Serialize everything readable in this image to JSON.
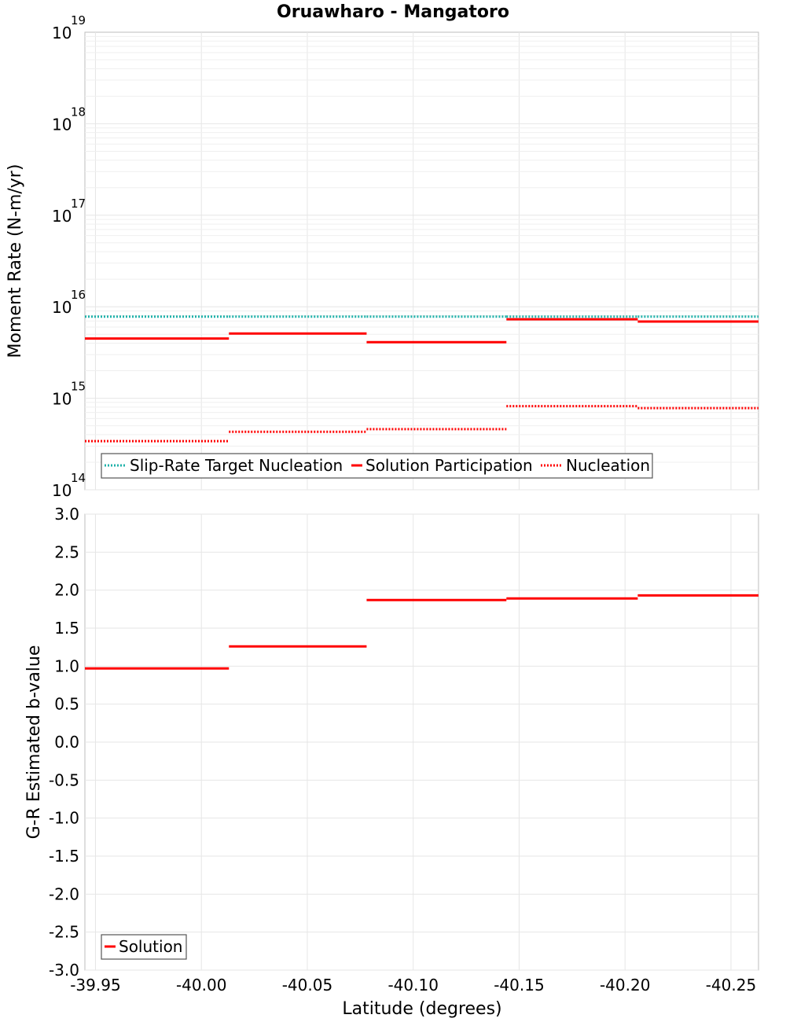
{
  "chart_data": [
    {
      "type": "line",
      "title": "Oruawharo - Mangatoro",
      "ylabel": "Moment Rate (N-m/yr)",
      "xlabel": "Latitude (degrees)",
      "yscale": "log",
      "ylim_exp": [
        14,
        19
      ],
      "y_tick_exponents": [
        "14",
        "15",
        "16",
        "17",
        "18",
        "19"
      ],
      "y_tick_base": "10",
      "xlim": [
        -39.945,
        -40.263
      ],
      "x_ticks": [
        "-39.95",
        "-40.00",
        "-40.05",
        "-40.10",
        "-40.15",
        "-40.20",
        "-40.25"
      ],
      "x_tick_values": [
        -39.95,
        -40.0,
        -40.05,
        -40.1,
        -40.15,
        -40.2,
        -40.25
      ],
      "series": [
        {
          "name": "Slip-Rate Target Nucleation",
          "color": "#20b2aa",
          "style": "dotted",
          "segments": [
            {
              "x0": -39.945,
              "x1": -40.013,
              "y": 7800000000000000.0
            },
            {
              "x0": -40.013,
              "x1": -40.078,
              "y": 7800000000000000.0
            },
            {
              "x0": -40.078,
              "x1": -40.144,
              "y": 7800000000000000.0
            },
            {
              "x0": -40.144,
              "x1": -40.206,
              "y": 7800000000000000.0
            },
            {
              "x0": -40.206,
              "x1": -40.263,
              "y": 7800000000000000.0
            }
          ]
        },
        {
          "name": "Solution Participation",
          "color": "#ff0000",
          "style": "solid",
          "segments": [
            {
              "x0": -39.945,
              "x1": -40.013,
              "y": 4500000000000000.0
            },
            {
              "x0": -40.013,
              "x1": -40.078,
              "y": 5100000000000000.0
            },
            {
              "x0": -40.078,
              "x1": -40.144,
              "y": 4100000000000000.0
            },
            {
              "x0": -40.144,
              "x1": -40.206,
              "y": 7300000000000000.0
            },
            {
              "x0": -40.206,
              "x1": -40.263,
              "y": 6900000000000000.0
            }
          ]
        },
        {
          "name": "Nucleation",
          "color": "#ff0000",
          "style": "dotted",
          "segments": [
            {
              "x0": -39.945,
              "x1": -40.013,
              "y": 340000000000000.0
            },
            {
              "x0": -40.013,
              "x1": -40.078,
              "y": 430000000000000.0
            },
            {
              "x0": -40.078,
              "x1": -40.144,
              "y": 460000000000000.0
            },
            {
              "x0": -40.144,
              "x1": -40.206,
              "y": 820000000000000.0
            },
            {
              "x0": -40.206,
              "x1": -40.263,
              "y": 780000000000000.0
            }
          ]
        }
      ],
      "legend": [
        "Slip-Rate Target Nucleation",
        "Solution Participation",
        "Nucleation"
      ],
      "legend_position": "bottom-left",
      "grid": true
    },
    {
      "type": "line",
      "ylabel": "G-R Estimated b-value",
      "xlabel": "Latitude (degrees)",
      "ylim": [
        -3.0,
        3.0
      ],
      "y_ticks": [
        "3.0",
        "2.5",
        "2.0",
        "1.5",
        "1.0",
        "0.5",
        "0.0",
        "-0.5",
        "-1.0",
        "-1.5",
        "-2.0",
        "-2.5",
        "-3.0"
      ],
      "y_tick_values": [
        3.0,
        2.5,
        2.0,
        1.5,
        1.0,
        0.5,
        0.0,
        -0.5,
        -1.0,
        -1.5,
        -2.0,
        -2.5,
        -3.0
      ],
      "xlim": [
        -39.945,
        -40.263
      ],
      "x_ticks": [
        "-39.95",
        "-40.00",
        "-40.05",
        "-40.10",
        "-40.15",
        "-40.20",
        "-40.25"
      ],
      "x_tick_values": [
        -39.95,
        -40.0,
        -40.05,
        -40.1,
        -40.15,
        -40.2,
        -40.25
      ],
      "series": [
        {
          "name": "Solution",
          "color": "#ff0000",
          "style": "solid",
          "segments": [
            {
              "x0": -39.945,
              "x1": -40.013,
              "y": 0.97
            },
            {
              "x0": -40.013,
              "x1": -40.078,
              "y": 1.26
            },
            {
              "x0": -40.078,
              "x1": -40.144,
              "y": 1.87
            },
            {
              "x0": -40.144,
              "x1": -40.206,
              "y": 1.89
            },
            {
              "x0": -40.206,
              "x1": -40.263,
              "y": 1.93
            }
          ]
        }
      ],
      "legend": [
        "Solution"
      ],
      "legend_position": "bottom-left",
      "grid": true
    }
  ]
}
